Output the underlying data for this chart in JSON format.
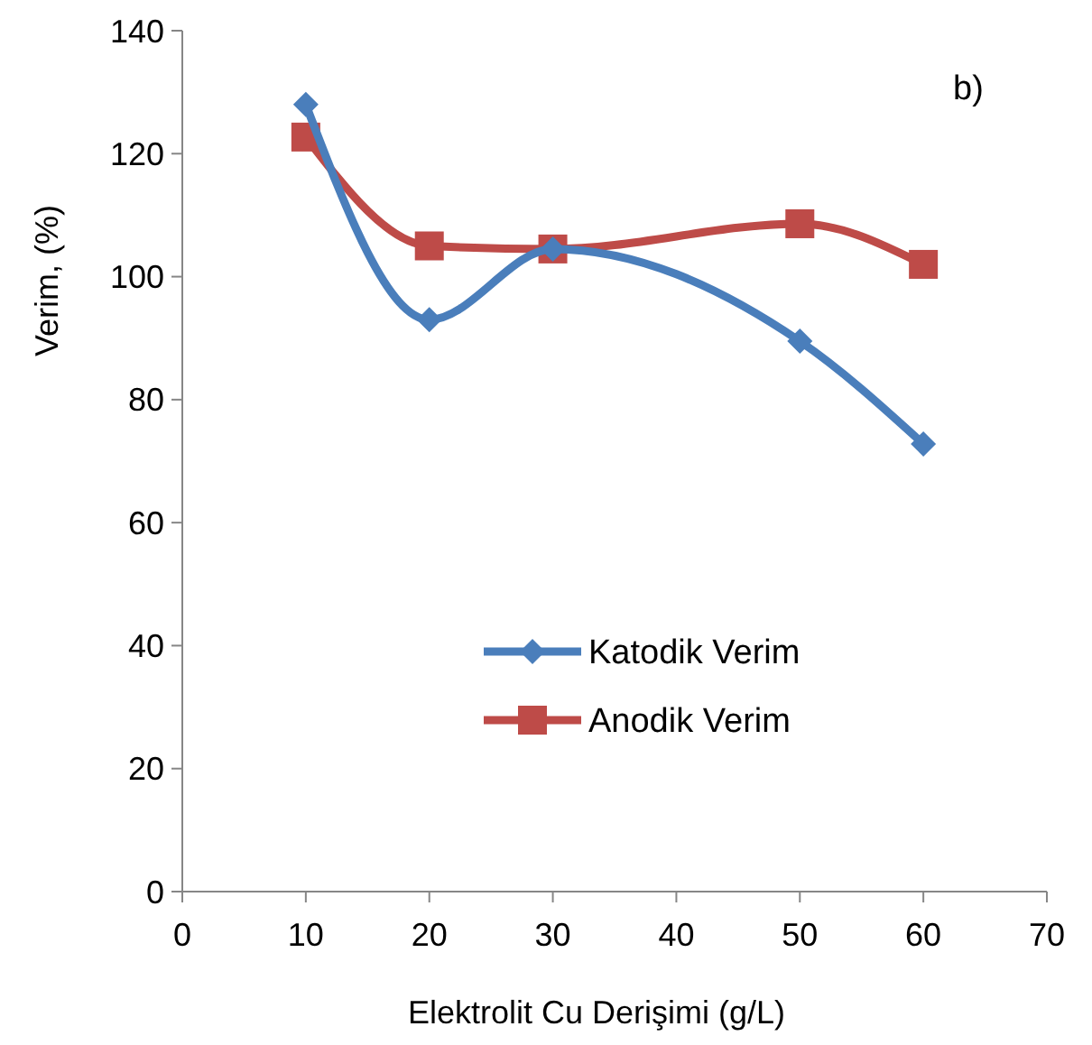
{
  "chart_data": {
    "type": "line",
    "xlabel": "Elektrolit Cu Derişimi (g/L)",
    "ylabel": "Verim, (%)",
    "x": [
      10,
      20,
      30,
      50,
      60
    ],
    "series": [
      {
        "name": "Katodik Verim",
        "color": "#4a7ebb",
        "marker": "diamond",
        "values": [
          128,
          93,
          104.5,
          89.5,
          72.8
        ]
      },
      {
        "name": "Anodik Verim",
        "color": "#be4b48",
        "marker": "square",
        "values": [
          122.7,
          105,
          104.5,
          108.6,
          102
        ]
      }
    ],
    "xlim": [
      0,
      70
    ],
    "xticks": [
      0,
      10,
      20,
      30,
      40,
      50,
      60,
      70
    ],
    "ylim": [
      0,
      140
    ],
    "yticks": [
      0,
      20,
      40,
      60,
      80,
      100,
      120,
      140
    ],
    "grid": false,
    "legend": "center",
    "annotations": [
      "b)"
    ]
  }
}
